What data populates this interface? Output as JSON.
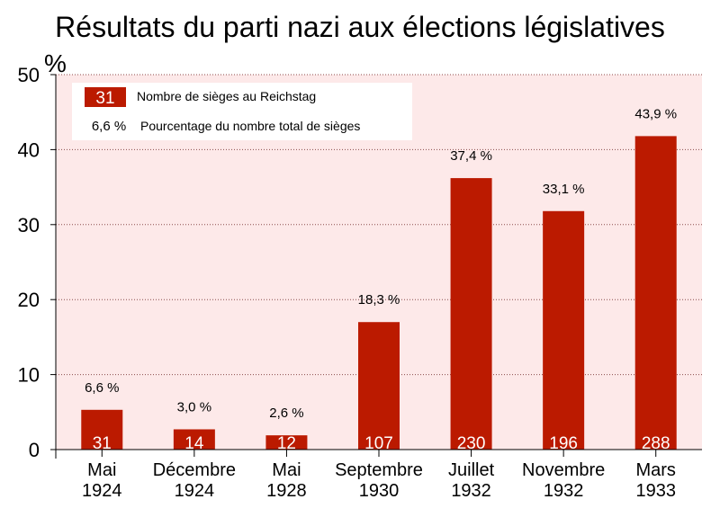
{
  "chart_data": {
    "type": "bar",
    "title": "Résultats du parti nazi aux élections législatives",
    "ylabel": "%",
    "ylim": [
      0,
      50
    ],
    "yticks": [
      0,
      10,
      20,
      30,
      40,
      50
    ],
    "categories": [
      [
        "Mai",
        "1924"
      ],
      [
        "Décembre",
        "1924"
      ],
      [
        "Mai",
        "1928"
      ],
      [
        "Septembre",
        "1930"
      ],
      [
        "Juillet",
        "1932"
      ],
      [
        "Novembre",
        "1932"
      ],
      [
        "Mars",
        "1933"
      ]
    ],
    "values": [
      5.3,
      2.7,
      1.9,
      17.0,
      36.2,
      31.8,
      41.8
    ],
    "percent_labels": [
      "6,6 %",
      "3,0 %",
      "2,6 %",
      "18,3 %",
      "37,4 %",
      "33,1 %",
      "43,9 %"
    ],
    "seat_labels": [
      "31",
      "14",
      "12",
      "107",
      "230",
      "196",
      "288"
    ],
    "legend": [
      {
        "swatch": "31",
        "label": "Nombre de sièges au Reichstag"
      },
      {
        "swatch": "6,6 %",
        "label": "Pourcentage du nombre total de sièges"
      }
    ],
    "grid": true,
    "colors": {
      "bar": "#bb1a00",
      "plot_bg": "#fde9e9",
      "grid": "#8c4a4a"
    }
  }
}
